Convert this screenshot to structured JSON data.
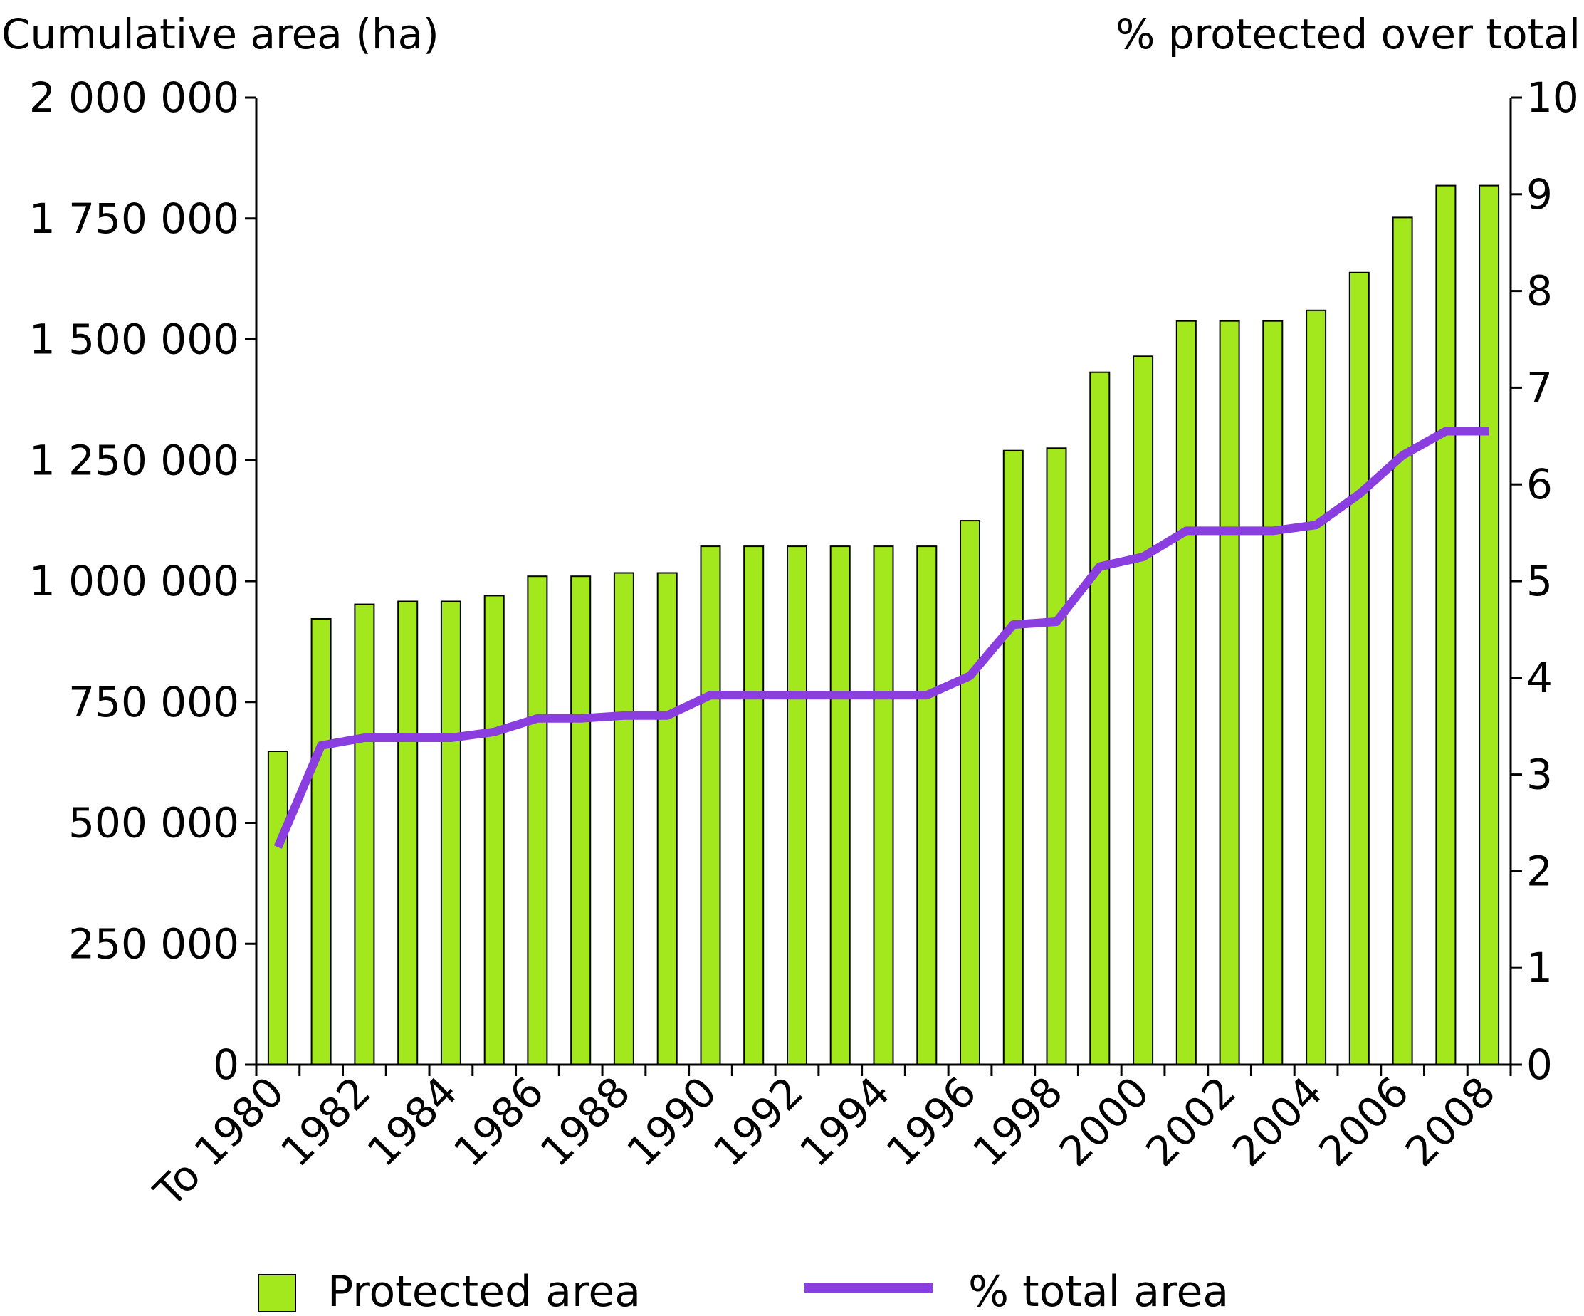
{
  "chart_data": {
    "type": "bar+line",
    "left_axis_title": "Cumulative area (ha)",
    "right_axis_title": "% protected over total",
    "categories": [
      "To 1980",
      "1981",
      "1982",
      "1983",
      "1984",
      "1985",
      "1986",
      "1987",
      "1988",
      "1989",
      "1990",
      "1991",
      "1992",
      "1993",
      "1994",
      "1995",
      "1996",
      "1997",
      "1998",
      "1999",
      "2000",
      "2001",
      "2002",
      "2003",
      "2004",
      "2005",
      "2006",
      "2007",
      "2008"
    ],
    "x_tick_labels": [
      "To 1980",
      "",
      "1982",
      "",
      "1984",
      "",
      "1986",
      "",
      "1988",
      "",
      "1990",
      "",
      "1992",
      "",
      "1994",
      "",
      "1996",
      "",
      "1998",
      "",
      "2000",
      "",
      "2002",
      "",
      "2004",
      "",
      "2006",
      "",
      "2008"
    ],
    "left_ticks": [
      {
        "value": 0,
        "label": "0"
      },
      {
        "value": 250000,
        "label": "250 000"
      },
      {
        "value": 500000,
        "label": "500 000"
      },
      {
        "value": 750000,
        "label": "750 000"
      },
      {
        "value": 1000000,
        "label": "1 000 000"
      },
      {
        "value": 1250000,
        "label": "1 250 000"
      },
      {
        "value": 1500000,
        "label": "1 500 000"
      },
      {
        "value": 1750000,
        "label": "1 750 000"
      },
      {
        "value": 2000000,
        "label": "2 000 000"
      }
    ],
    "right_ticks": [
      {
        "value": 0,
        "label": "0"
      },
      {
        "value": 1,
        "label": "1"
      },
      {
        "value": 2,
        "label": "2"
      },
      {
        "value": 3,
        "label": "3"
      },
      {
        "value": 4,
        "label": "4"
      },
      {
        "value": 5,
        "label": "5"
      },
      {
        "value": 6,
        "label": "6"
      },
      {
        "value": 7,
        "label": "7"
      },
      {
        "value": 8,
        "label": "8"
      },
      {
        "value": 9,
        "label": "9"
      },
      {
        "value": 10,
        "label": "10"
      }
    ],
    "ylim_left": [
      0,
      2000000
    ],
    "ylim_right": [
      0,
      10
    ],
    "series": [
      {
        "name": "Protected area",
        "type": "bar",
        "axis": "left",
        "color": "#a3e81c",
        "values": [
          648000,
          922000,
          952000,
          958000,
          958000,
          970000,
          1010000,
          1010000,
          1017000,
          1017000,
          1072000,
          1072000,
          1072000,
          1072000,
          1072000,
          1072000,
          1125000,
          1270000,
          1275000,
          1432000,
          1465000,
          1538000,
          1538000,
          1538000,
          1560000,
          1638000,
          1752000,
          1818000,
          1818000
        ]
      },
      {
        "name": "% total area",
        "type": "line",
        "axis": "right",
        "color": "#8a3ee0",
        "values": [
          2.25,
          3.3,
          3.38,
          3.38,
          3.38,
          3.44,
          3.58,
          3.58,
          3.61,
          3.61,
          3.82,
          3.82,
          3.82,
          3.82,
          3.82,
          3.82,
          4.02,
          4.55,
          4.58,
          5.15,
          5.25,
          5.52,
          5.52,
          5.52,
          5.58,
          5.9,
          6.3,
          6.55,
          6.55
        ]
      }
    ],
    "grid": false,
    "legend_position": "bottom"
  }
}
